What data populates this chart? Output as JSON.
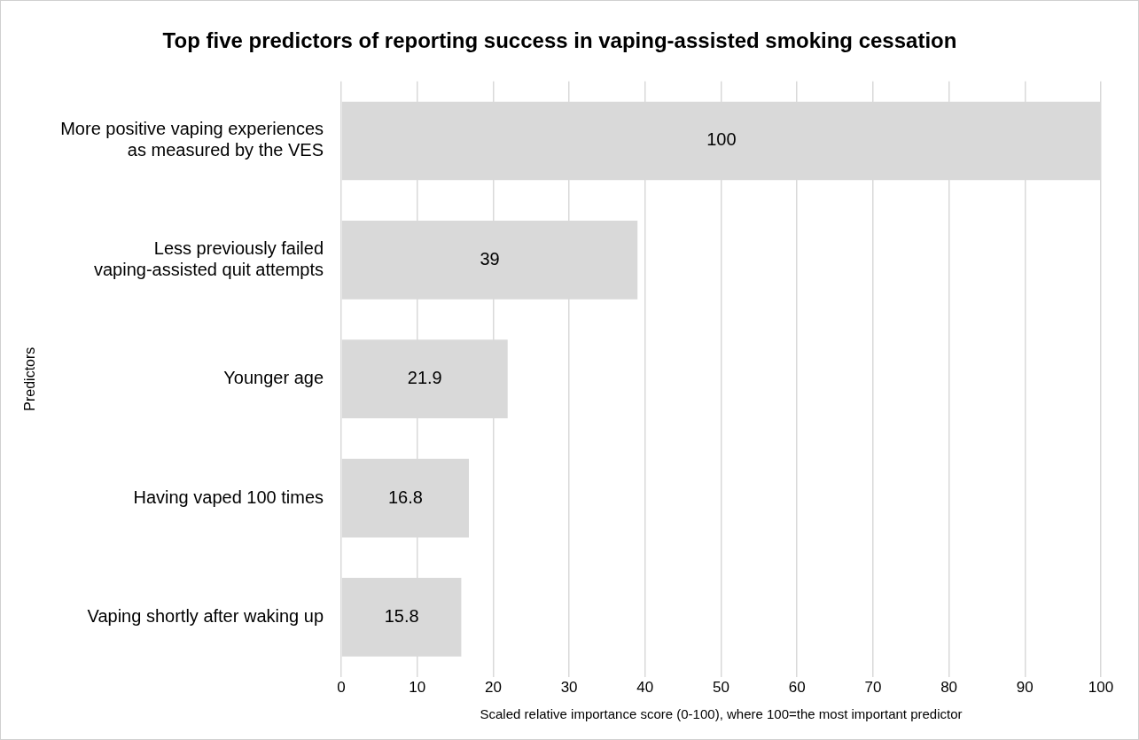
{
  "chart_data": {
    "type": "bar",
    "orientation": "horizontal",
    "title": "Top five predictors of reporting success in vaping-assisted smoking cessation",
    "xlabel": "Scaled relative importance score (0-100), where 100=the most important predictor",
    "ylabel": "Predictors",
    "categories": [
      "More positive vaping experiences as measured by the VES",
      "Less previously failed vaping-assisted quit attempts",
      "Younger age",
      "Having vaped 100 times",
      "Vaping shortly after waking up"
    ],
    "values": [
      100,
      39,
      21.9,
      16.8,
      15.8
    ],
    "color": "#d9d9d9",
    "xlim": [
      0,
      100
    ],
    "xticks": [
      0,
      10,
      20,
      30,
      40,
      50,
      60,
      70,
      80,
      90,
      100
    ],
    "grid": "x",
    "data_labels": true,
    "legend": false
  }
}
